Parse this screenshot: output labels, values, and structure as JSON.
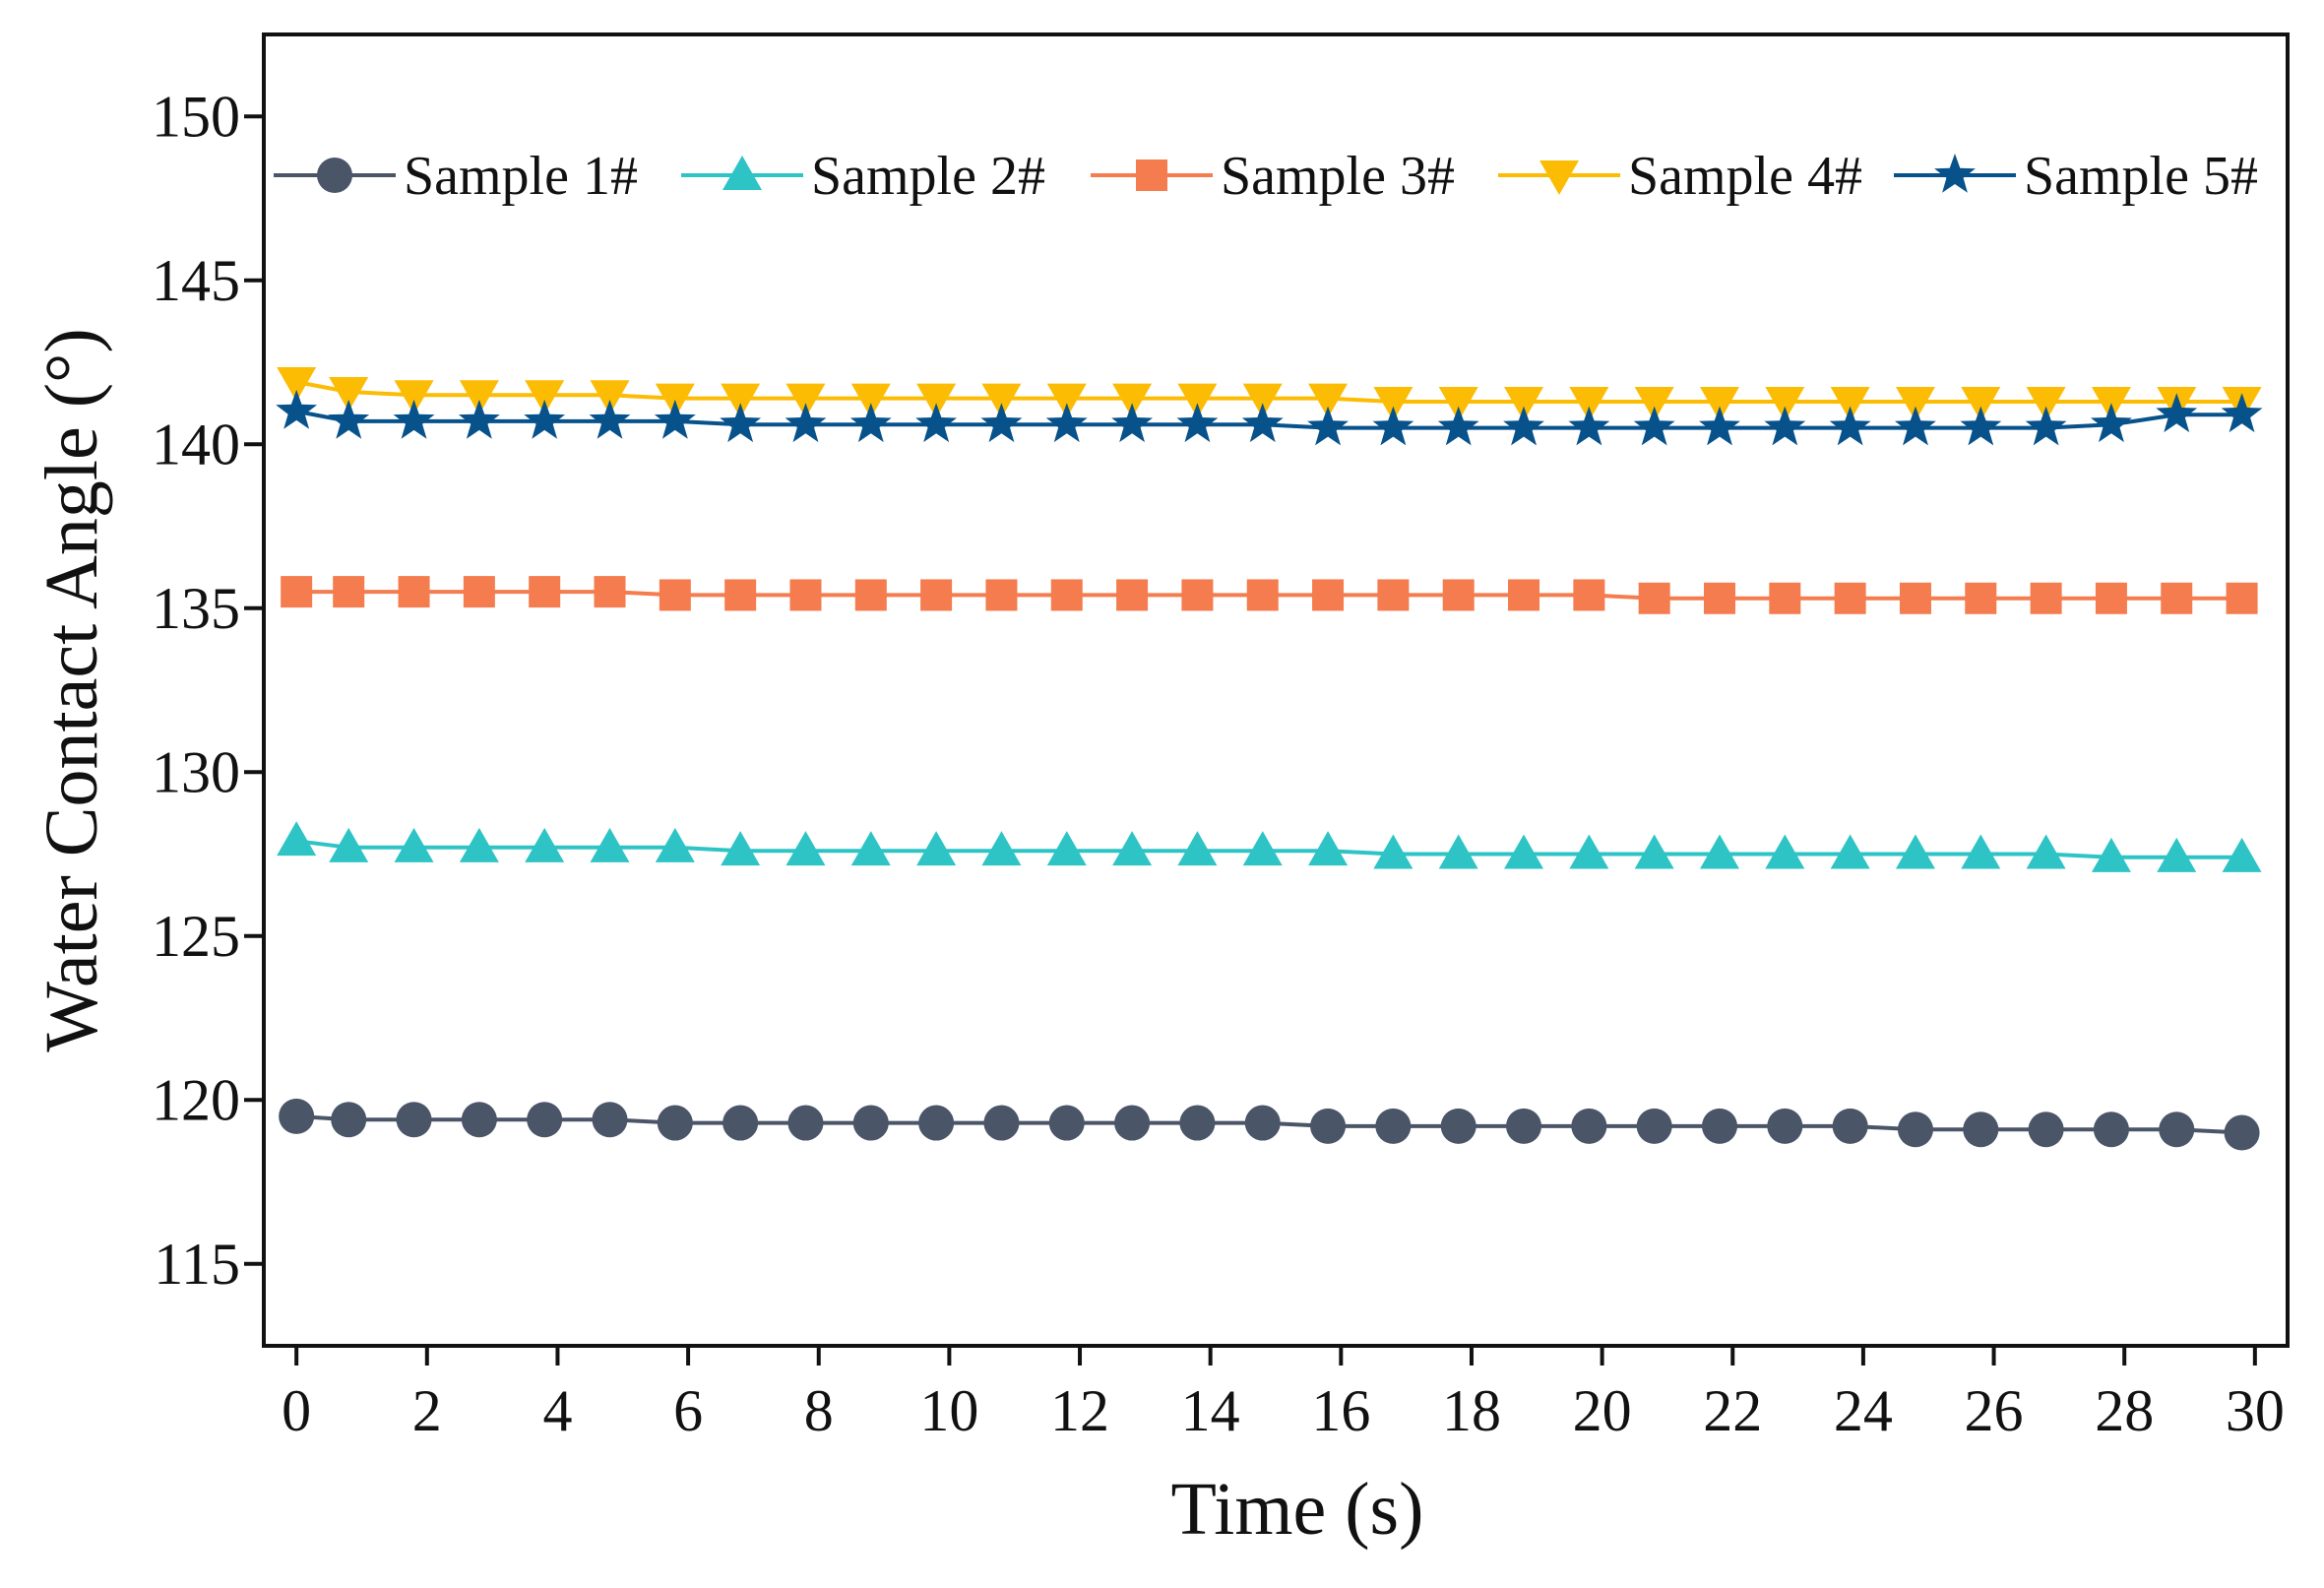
{
  "chart_data": {
    "type": "line",
    "title": "",
    "xlabel": "Time (s)",
    "ylabel": "Water Contact Angle (°)",
    "xlim": [
      -0.5,
      30.5
    ],
    "ylim": [
      112.5,
      152.5
    ],
    "xticks": [
      0,
      2,
      4,
      6,
      8,
      10,
      12,
      14,
      16,
      18,
      20,
      22,
      24,
      26,
      28,
      30
    ],
    "yticks": [
      115,
      120,
      125,
      130,
      135,
      140,
      145,
      150
    ],
    "x": [
      0,
      0.8,
      1.8,
      2.8,
      3.8,
      4.8,
      5.8,
      6.8,
      7.8,
      8.8,
      9.8,
      10.8,
      11.8,
      12.8,
      13.8,
      14.8,
      15.8,
      16.8,
      17.8,
      18.8,
      19.8,
      20.8,
      21.8,
      22.8,
      23.8,
      24.8,
      25.8,
      26.8,
      27.8,
      28.8,
      29.8
    ],
    "grid": false,
    "legend_position": "top",
    "series": [
      {
        "name": "Sample 1#",
        "color": "#4a5568",
        "marker": "circle",
        "values": [
          119.5,
          119.4,
          119.4,
          119.4,
          119.4,
          119.4,
          119.3,
          119.3,
          119.3,
          119.3,
          119.3,
          119.3,
          119.3,
          119.3,
          119.3,
          119.3,
          119.2,
          119.2,
          119.2,
          119.2,
          119.2,
          119.2,
          119.2,
          119.2,
          119.2,
          119.1,
          119.1,
          119.1,
          119.1,
          119.1,
          119.0
        ]
      },
      {
        "name": "Sample 2#",
        "color": "#2ec4c6",
        "marker": "triangle-up",
        "values": [
          127.9,
          127.7,
          127.7,
          127.7,
          127.7,
          127.7,
          127.7,
          127.6,
          127.6,
          127.6,
          127.6,
          127.6,
          127.6,
          127.6,
          127.6,
          127.6,
          127.6,
          127.5,
          127.5,
          127.5,
          127.5,
          127.5,
          127.5,
          127.5,
          127.5,
          127.5,
          127.5,
          127.5,
          127.4,
          127.4,
          127.4
        ]
      },
      {
        "name": "Sample 3#",
        "color": "#f47c4f",
        "marker": "square",
        "values": [
          135.5,
          135.5,
          135.5,
          135.5,
          135.5,
          135.5,
          135.4,
          135.4,
          135.4,
          135.4,
          135.4,
          135.4,
          135.4,
          135.4,
          135.4,
          135.4,
          135.4,
          135.4,
          135.4,
          135.4,
          135.4,
          135.3,
          135.3,
          135.3,
          135.3,
          135.3,
          135.3,
          135.3,
          135.3,
          135.3,
          135.3
        ]
      },
      {
        "name": "Sample 4#",
        "color": "#fcbc04",
        "marker": "triangle-down",
        "values": [
          141.9,
          141.6,
          141.5,
          141.5,
          141.5,
          141.5,
          141.4,
          141.4,
          141.4,
          141.4,
          141.4,
          141.4,
          141.4,
          141.4,
          141.4,
          141.4,
          141.4,
          141.3,
          141.3,
          141.3,
          141.3,
          141.3,
          141.3,
          141.3,
          141.3,
          141.3,
          141.3,
          141.3,
          141.3,
          141.3,
          141.3
        ]
      },
      {
        "name": "Sample 5#",
        "color": "#08528c",
        "marker": "star",
        "values": [
          141.0,
          140.7,
          140.7,
          140.7,
          140.7,
          140.7,
          140.7,
          140.6,
          140.6,
          140.6,
          140.6,
          140.6,
          140.6,
          140.6,
          140.6,
          140.6,
          140.5,
          140.5,
          140.5,
          140.5,
          140.5,
          140.5,
          140.5,
          140.5,
          140.5,
          140.5,
          140.5,
          140.5,
          140.6,
          140.9,
          140.9
        ]
      }
    ]
  }
}
